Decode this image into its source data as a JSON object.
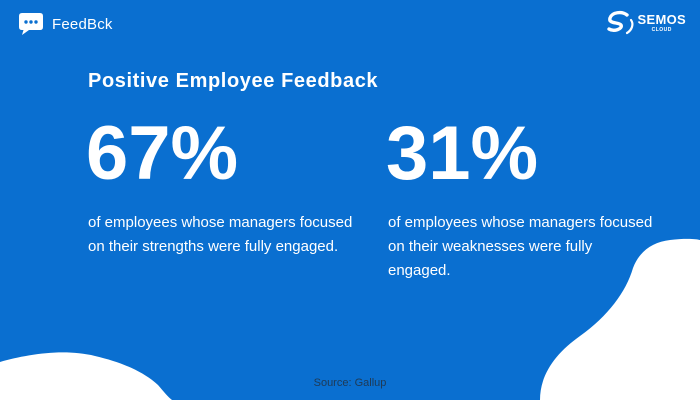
{
  "brand": {
    "name": "FeedBck",
    "icon": "chat-bubble-icon"
  },
  "logo": {
    "name": "SEMOS",
    "sub": "CLOUD",
    "icon": "semos-logo-icon"
  },
  "title": "Positive Employee Feedback",
  "stats": [
    {
      "value": "67%",
      "description": "of employees whose managers focused on their strengths were fully engaged."
    },
    {
      "value": "31%",
      "description": "of employees whose managers focused on their weaknesses were fully engaged."
    }
  ],
  "source": "Source: Gallup",
  "colors": {
    "background": "#0a6fd0",
    "text": "#ffffff",
    "shape": "#ffffff"
  }
}
